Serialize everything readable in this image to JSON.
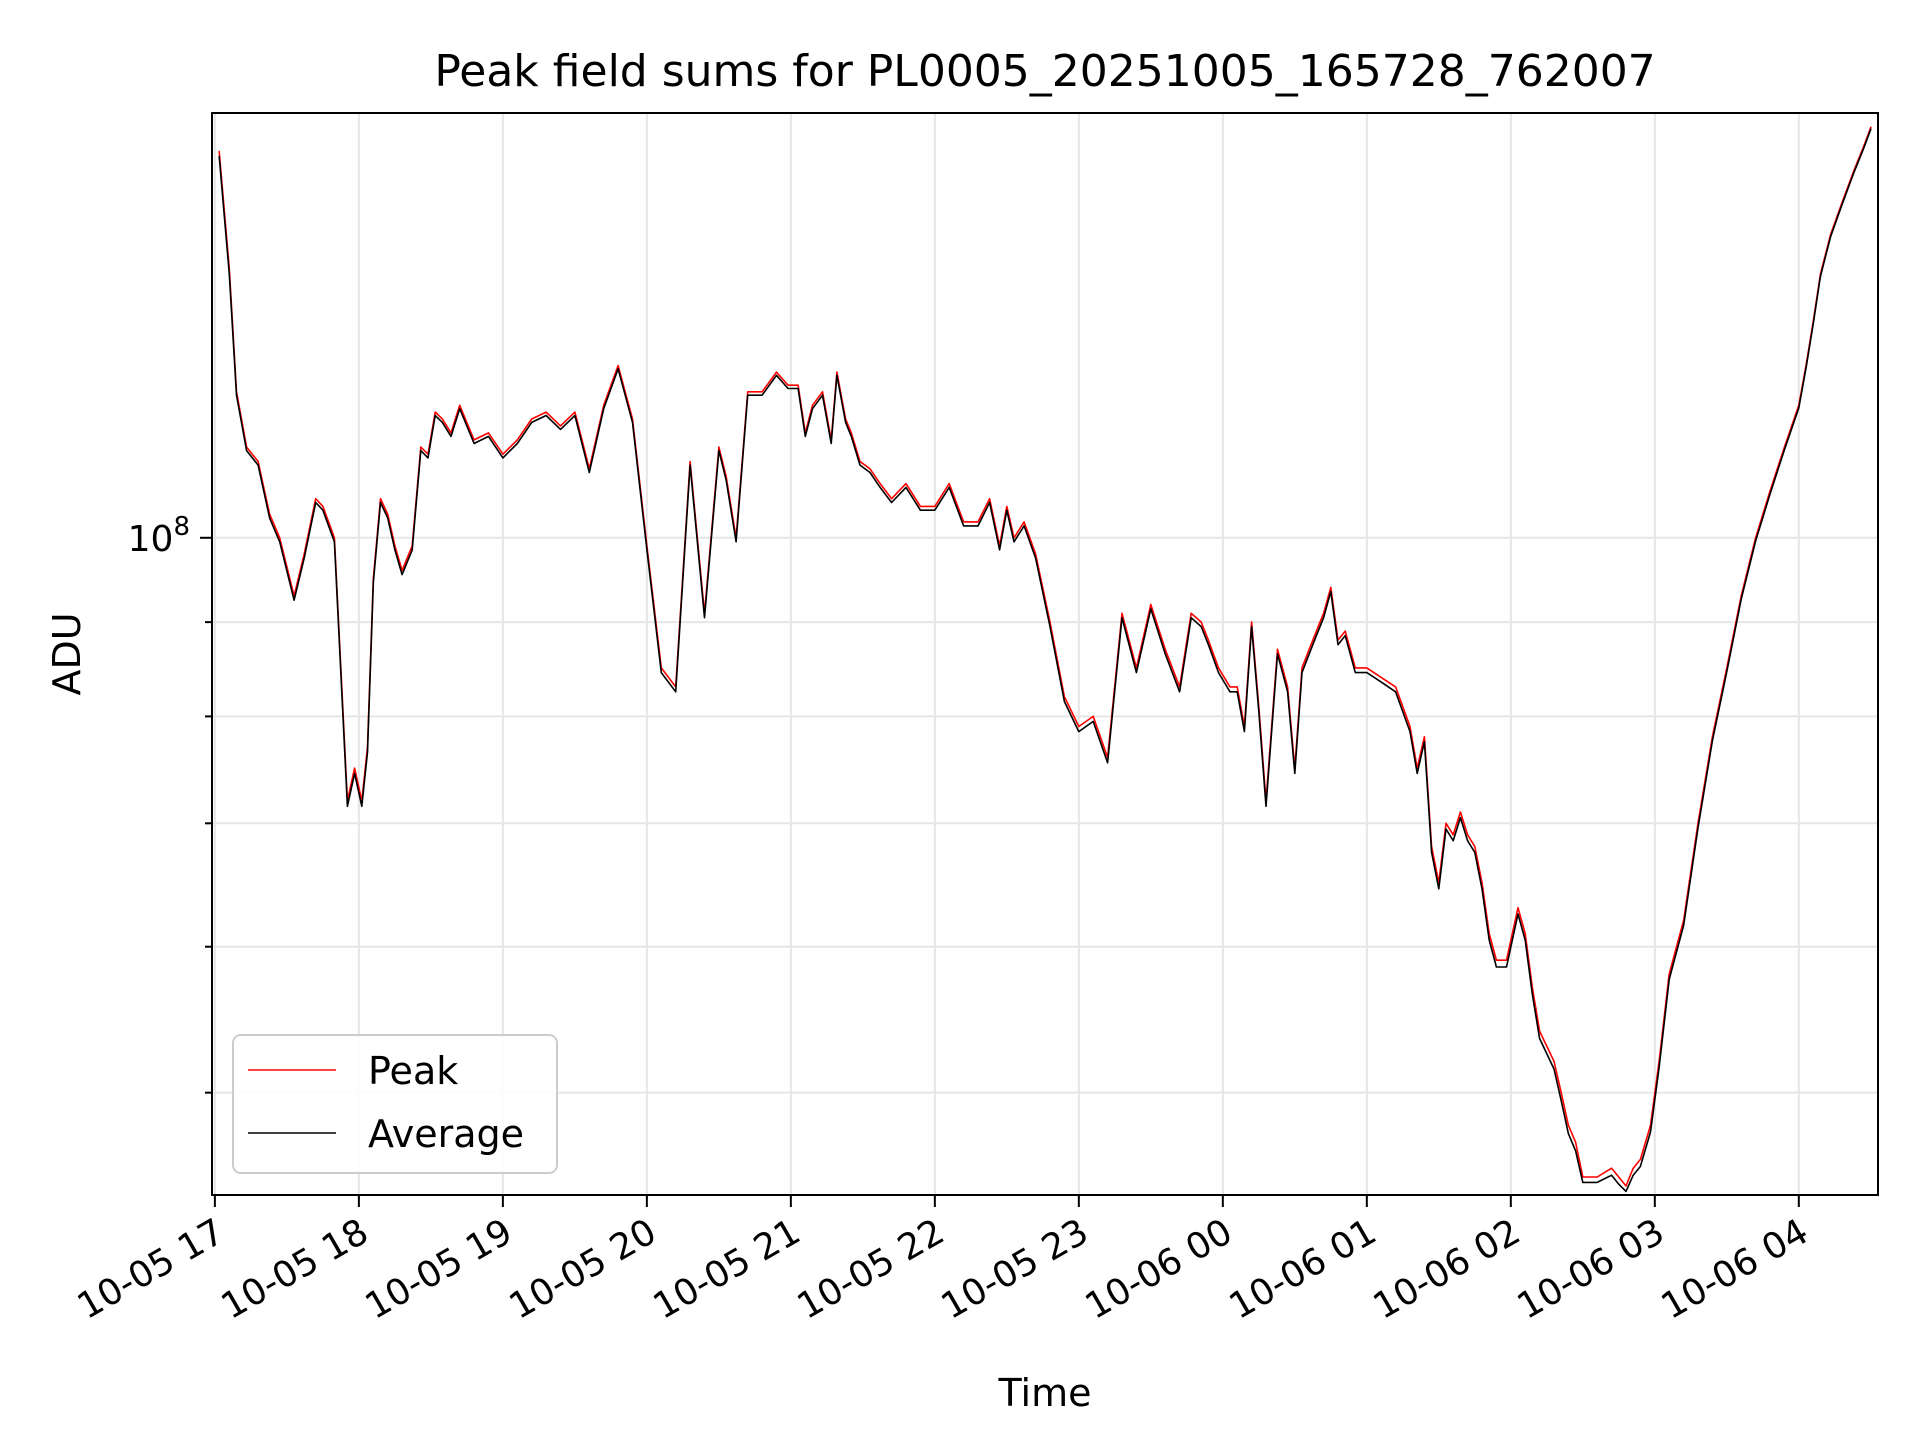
{
  "chart_data": {
    "type": "line",
    "title": "Peak field sums for PL0005_20251005_165728_762007",
    "xlabel": "Time",
    "ylabel": "ADU",
    "y_scale": "log",
    "xlim_hours": [
      16.98,
      28.55
    ],
    "ylim": [
      44000000,
      170000000
    ],
    "y_major_ticks": [
      {
        "value": 100000000,
        "base": "10",
        "exp": "8"
      }
    ],
    "y_minor_ticks": [
      50000000,
      60000000,
      70000000,
      80000000,
      90000000,
      200000000
    ],
    "x_tick_labels": [
      "10-05 17",
      "10-05 18",
      "10-05 19",
      "10-05 20",
      "10-05 21",
      "10-05 22",
      "10-05 23",
      "10-06 00",
      "10-06 01",
      "10-06 02",
      "10-06 03",
      "10-06 04"
    ],
    "x_tick_hours": [
      17,
      18,
      19,
      20,
      21,
      22,
      23,
      24,
      25,
      26,
      27,
      28
    ],
    "grid": true,
    "legend_position": "lower-left",
    "series": [
      {
        "name": "Peak",
        "color": "#ff0000",
        "hours": [
          17.03,
          17.1,
          17.15,
          17.22,
          17.3,
          17.38,
          17.45,
          17.55,
          17.62,
          17.7,
          17.75,
          17.83,
          17.92,
          17.97,
          18.02,
          18.06,
          18.1,
          18.15,
          18.2,
          18.25,
          18.3,
          18.37,
          18.43,
          18.48,
          18.53,
          18.58,
          18.64,
          18.7,
          18.8,
          18.9,
          19.0,
          19.1,
          19.2,
          19.3,
          19.4,
          19.5,
          19.6,
          19.7,
          19.8,
          19.9,
          20.0,
          20.1,
          20.2,
          20.3,
          20.4,
          20.5,
          20.55,
          20.62,
          20.7,
          20.8,
          20.9,
          20.98,
          21.05,
          21.1,
          21.15,
          21.22,
          21.28,
          21.32,
          21.38,
          21.42,
          21.48,
          21.55,
          21.62,
          21.7,
          21.8,
          21.9,
          22.0,
          22.1,
          22.2,
          22.3,
          22.38,
          22.45,
          22.5,
          22.55,
          22.62,
          22.7,
          22.8,
          22.9,
          23.0,
          23.1,
          23.2,
          23.3,
          23.4,
          23.5,
          23.6,
          23.7,
          23.78,
          23.85,
          23.9,
          23.97,
          24.05,
          24.1,
          24.15,
          24.2,
          24.25,
          24.3,
          24.38,
          24.45,
          24.5,
          24.55,
          24.6,
          24.65,
          24.7,
          24.75,
          24.8,
          24.85,
          24.92,
          25.0,
          25.1,
          25.2,
          25.3,
          25.35,
          25.4,
          25.45,
          25.5,
          25.55,
          25.6,
          25.65,
          25.7,
          25.75,
          25.8,
          25.85,
          25.9,
          25.97,
          26.05,
          26.1,
          26.15,
          26.2,
          26.3,
          26.35,
          26.4,
          26.45,
          26.5,
          26.6,
          26.7,
          26.75,
          26.8,
          26.85,
          26.9,
          26.97,
          27.03,
          27.1,
          27.2,
          27.3,
          27.4,
          27.5,
          27.6,
          27.7,
          27.8,
          27.9,
          28.0,
          28.05,
          28.1,
          28.15,
          28.22,
          28.3,
          28.38,
          28.45,
          28.5
        ],
        "values": [
          162000000,
          140000000,
          120000000,
          112000000,
          110000000,
          103000000,
          100000000,
          93000000,
          98000000,
          105000000,
          104000000,
          100000000,
          72000000,
          75000000,
          72000000,
          77000000,
          95000000,
          105000000,
          103000000,
          99000000,
          96000000,
          99000000,
          112000000,
          111000000,
          117000000,
          116000000,
          114000000,
          118000000,
          113000000,
          114000000,
          111000000,
          113000000,
          116000000,
          117000000,
          115000000,
          117000000,
          109000000,
          118000000,
          124000000,
          116000000,
          99000000,
          85000000,
          83000000,
          110000000,
          91000000,
          112000000,
          108000000,
          100000000,
          120000000,
          120000000,
          123000000,
          121000000,
          121000000,
          114000000,
          118000000,
          120000000,
          113000000,
          123000000,
          116000000,
          114000000,
          110000000,
          109000000,
          107000000,
          105000000,
          107000000,
          104000000,
          104000000,
          107000000,
          102000000,
          102000000,
          105000000,
          99000000,
          104000000,
          100000000,
          102000000,
          98000000,
          90000000,
          82000000,
          79000000,
          80000000,
          76000000,
          91000000,
          85000000,
          92000000,
          87000000,
          83000000,
          91000000,
          90000000,
          88000000,
          85000000,
          83000000,
          83000000,
          79000000,
          90000000,
          81000000,
          72000000,
          87000000,
          83000000,
          75000000,
          85000000,
          87000000,
          89000000,
          91000000,
          94000000,
          88000000,
          89000000,
          85000000,
          85000000,
          84000000,
          83000000,
          79000000,
          75000000,
          78000000,
          68000000,
          65000000,
          70000000,
          69000000,
          71000000,
          69000000,
          68000000,
          65000000,
          61000000,
          59000000,
          59000000,
          63000000,
          61000000,
          57000000,
          54000000,
          52000000,
          50000000,
          48000000,
          47000000,
          45000000,
          45000000,
          45500000,
          45000000,
          44500000,
          45500000,
          46000000,
          48000000,
          52000000,
          58000000,
          62000000,
          70000000,
          78000000,
          85000000,
          93000000,
          100000000,
          106000000,
          112000000,
          118000000,
          124000000,
          131000000,
          139000000,
          146000000,
          152000000,
          158000000,
          163000000,
          167000000
        ]
      },
      {
        "name": "Average",
        "color": "#000000",
        "hours": [
          17.03,
          17.1,
          17.15,
          17.22,
          17.3,
          17.38,
          17.45,
          17.55,
          17.62,
          17.7,
          17.75,
          17.83,
          17.92,
          17.97,
          18.02,
          18.06,
          18.1,
          18.15,
          18.2,
          18.25,
          18.3,
          18.37,
          18.43,
          18.48,
          18.53,
          18.58,
          18.64,
          18.7,
          18.8,
          18.9,
          19.0,
          19.1,
          19.2,
          19.3,
          19.4,
          19.5,
          19.6,
          19.7,
          19.8,
          19.9,
          20.0,
          20.1,
          20.2,
          20.3,
          20.4,
          20.5,
          20.55,
          20.62,
          20.7,
          20.8,
          20.9,
          20.98,
          21.05,
          21.1,
          21.15,
          21.22,
          21.28,
          21.32,
          21.38,
          21.42,
          21.48,
          21.55,
          21.62,
          21.7,
          21.8,
          21.9,
          22.0,
          22.1,
          22.2,
          22.3,
          22.38,
          22.45,
          22.5,
          22.55,
          22.62,
          22.7,
          22.8,
          22.9,
          23.0,
          23.1,
          23.2,
          23.3,
          23.4,
          23.5,
          23.6,
          23.7,
          23.78,
          23.85,
          23.9,
          23.97,
          24.05,
          24.1,
          24.15,
          24.2,
          24.25,
          24.3,
          24.38,
          24.45,
          24.5,
          24.55,
          24.6,
          24.65,
          24.7,
          24.75,
          24.8,
          24.85,
          24.92,
          25.0,
          25.1,
          25.2,
          25.3,
          25.35,
          25.4,
          25.45,
          25.5,
          25.55,
          25.6,
          25.65,
          25.7,
          25.75,
          25.8,
          25.85,
          25.9,
          25.97,
          26.05,
          26.1,
          26.15,
          26.2,
          26.3,
          26.35,
          26.4,
          26.45,
          26.5,
          26.6,
          26.7,
          26.75,
          26.8,
          26.85,
          26.9,
          26.97,
          27.03,
          27.1,
          27.2,
          27.3,
          27.4,
          27.5,
          27.6,
          27.7,
          27.8,
          27.9,
          28.0,
          28.05,
          28.1,
          28.15,
          28.22,
          28.3,
          28.38,
          28.45,
          28.5
        ],
        "values": [
          161000000,
          139000000,
          119500000,
          111500000,
          109500000,
          102500000,
          99500000,
          92500000,
          97500000,
          104500000,
          103500000,
          99500000,
          71500000,
          74500000,
          71500000,
          76500000,
          94500000,
          104500000,
          102500000,
          98500000,
          95500000,
          98500000,
          111500000,
          110500000,
          116500000,
          115500000,
          113500000,
          117500000,
          112500000,
          113500000,
          110500000,
          112500000,
          115500000,
          116500000,
          114500000,
          116500000,
          108500000,
          117500000,
          123500000,
          115500000,
          98500000,
          84500000,
          82500000,
          109500000,
          90500000,
          111500000,
          107500000,
          99500000,
          119500000,
          119500000,
          122500000,
          120500000,
          120500000,
          113500000,
          117500000,
          119500000,
          112500000,
          122500000,
          115500000,
          113500000,
          109500000,
          108500000,
          106500000,
          104500000,
          106500000,
          103500000,
          103500000,
          106500000,
          101500000,
          101500000,
          104500000,
          98500000,
          103500000,
          99500000,
          101500000,
          97500000,
          89500000,
          81500000,
          78500000,
          79500000,
          75500000,
          90500000,
          84500000,
          91500000,
          86500000,
          82500000,
          90500000,
          89500000,
          87500000,
          84500000,
          82500000,
          82500000,
          78500000,
          89500000,
          80500000,
          71500000,
          86500000,
          82500000,
          74500000,
          84500000,
          86500000,
          88500000,
          90500000,
          93500000,
          87500000,
          88500000,
          84500000,
          84500000,
          83500000,
          82500000,
          78500000,
          74500000,
          77500000,
          67500000,
          64500000,
          69500000,
          68500000,
          70500000,
          68500000,
          67500000,
          64500000,
          60500000,
          58500000,
          58500000,
          62500000,
          60500000,
          56500000,
          53500000,
          51500000,
          49500000,
          47500000,
          46500000,
          44700000,
          44700000,
          45100000,
          44600000,
          44200000,
          45100000,
          45600000,
          47600000,
          51600000,
          57600000,
          61600000,
          69600000,
          77600000,
          84600000,
          92600000,
          99600000,
          105600000,
          111600000,
          117600000,
          123600000,
          130600000,
          138600000,
          145600000,
          151600000,
          157600000,
          162600000,
          166600000
        ]
      }
    ]
  }
}
